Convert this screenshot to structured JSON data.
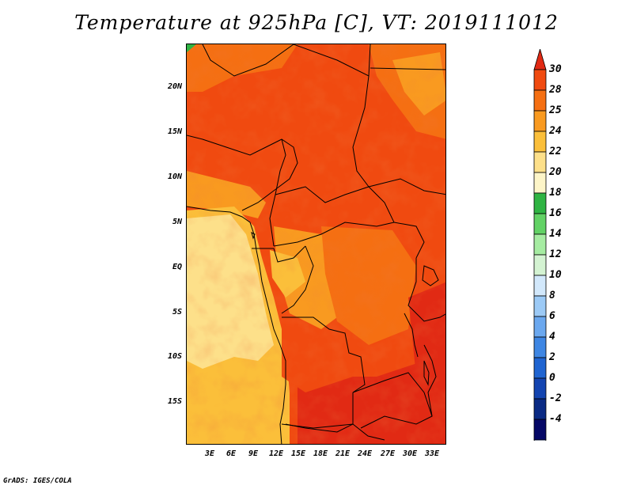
{
  "title": "Temperature at 925hPa [C], VT: 2019111012",
  "credit": "GrADS: IGES/COLA",
  "axes": {
    "lat_labels": [
      "20N",
      "15N",
      "10N",
      "5N",
      "EQ",
      "5S",
      "10S",
      "15S"
    ],
    "lon_labels": [
      "3E",
      "6E",
      "9E",
      "12E",
      "15E",
      "18E",
      "21E",
      "24E",
      "27E",
      "30E",
      "33E"
    ]
  },
  "colorbar": {
    "labels": [
      "30",
      "28",
      "25",
      "24",
      "22",
      "20",
      "18",
      "16",
      "14",
      "12",
      "10",
      "8",
      "6",
      "4",
      "2",
      "0",
      "-2",
      "-4"
    ],
    "colors": [
      "#e12a14",
      "#f04a10",
      "#f56f12",
      "#f99a20",
      "#fbbf3a",
      "#fde08a",
      "#fdf5c8",
      "#2fb443",
      "#62d265",
      "#a6eca2",
      "#d4f3d2",
      "#d2e8fb",
      "#9ccaf6",
      "#6ba8ef",
      "#3e86e3",
      "#1f64d1",
      "#1344b0",
      "#0a2a84",
      "#050866"
    ],
    "top_color": "#e12a14",
    "bottom_color": "#d6e2fb"
  }
}
